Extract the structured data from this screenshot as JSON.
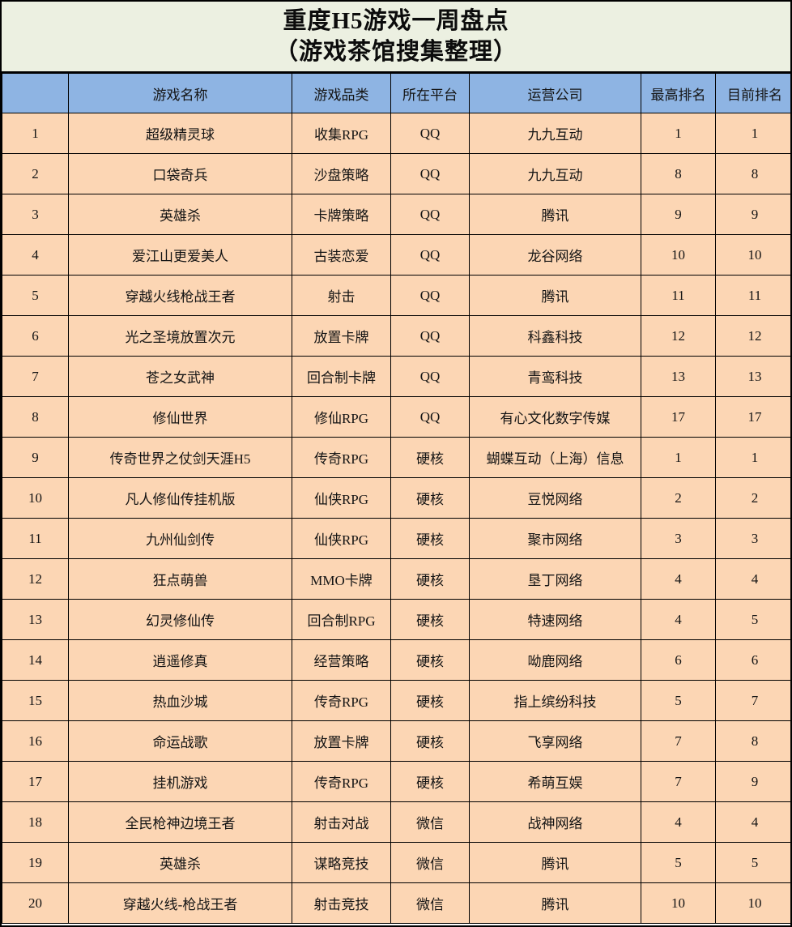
{
  "title": {
    "line1": "重度H5游戏一周盘点",
    "line2": "（游戏茶馆搜集整理）"
  },
  "chart_data": {
    "type": "table",
    "title": "重度H5游戏一周盘点（游戏茶馆搜集整理）",
    "columns": [
      "",
      "游戏名称",
      "游戏品类",
      "所在平台",
      "运营公司",
      "最高排名",
      "目前排名"
    ],
    "rows": [
      [
        "1",
        "超级精灵球",
        "收集RPG",
        "QQ",
        "九九互动",
        "1",
        "1"
      ],
      [
        "2",
        "口袋奇兵",
        "沙盘策略",
        "QQ",
        "九九互动",
        "8",
        "8"
      ],
      [
        "3",
        "英雄杀",
        "卡牌策略",
        "QQ",
        "腾讯",
        "9",
        "9"
      ],
      [
        "4",
        "爱江山更爱美人",
        "古装恋爱",
        "QQ",
        "龙谷网络",
        "10",
        "10"
      ],
      [
        "5",
        "穿越火线枪战王者",
        "射击",
        "QQ",
        "腾讯",
        "11",
        "11"
      ],
      [
        "6",
        "光之圣境放置次元",
        "放置卡牌",
        "QQ",
        "科鑫科技",
        "12",
        "12"
      ],
      [
        "7",
        "苍之女武神",
        "回合制卡牌",
        "QQ",
        "青鸾科技",
        "13",
        "13"
      ],
      [
        "8",
        "修仙世界",
        "修仙RPG",
        "QQ",
        "有心文化数字传媒",
        "17",
        "17"
      ],
      [
        "9",
        "传奇世界之仗剑天涯H5",
        "传奇RPG",
        "硬核",
        "蝴蝶互动（上海）信息",
        "1",
        "1"
      ],
      [
        "10",
        "凡人修仙传挂机版",
        "仙侠RPG",
        "硬核",
        "豆悦网络",
        "2",
        "2"
      ],
      [
        "11",
        "九州仙剑传",
        "仙侠RPG",
        "硬核",
        "聚市网络",
        "3",
        "3"
      ],
      [
        "12",
        "狂点萌兽",
        "MMO卡牌",
        "硬核",
        "垦丁网络",
        "4",
        "4"
      ],
      [
        "13",
        "幻灵修仙传",
        "回合制RPG",
        "硬核",
        "特速网络",
        "4",
        "5"
      ],
      [
        "14",
        "逍遥修真",
        "经营策略",
        "硬核",
        "呦鹿网络",
        "6",
        "6"
      ],
      [
        "15",
        "热血沙城",
        "传奇RPG",
        "硬核",
        "指上缤纷科技",
        "5",
        "7"
      ],
      [
        "16",
        "命运战歌",
        "放置卡牌",
        "硬核",
        "飞享网络",
        "7",
        "8"
      ],
      [
        "17",
        "挂机游戏",
        "传奇RPG",
        "硬核",
        "希萌互娱",
        "7",
        "9"
      ],
      [
        "18",
        "全民枪神边境王者",
        "射击对战",
        "微信",
        "战神网络",
        "4",
        "4"
      ],
      [
        "19",
        "英雄杀",
        "谋略竞技",
        "微信",
        "腾讯",
        "5",
        "5"
      ],
      [
        "20",
        "穿越火线-枪战王者",
        "射击竞技",
        "微信",
        "腾讯",
        "10",
        "10"
      ]
    ]
  },
  "colors": {
    "title_bg": "#ecf0e1",
    "header_bg": "#8eb4e3",
    "row_bg": "#fcd6b4",
    "border": "#000000",
    "text": "#141414"
  }
}
